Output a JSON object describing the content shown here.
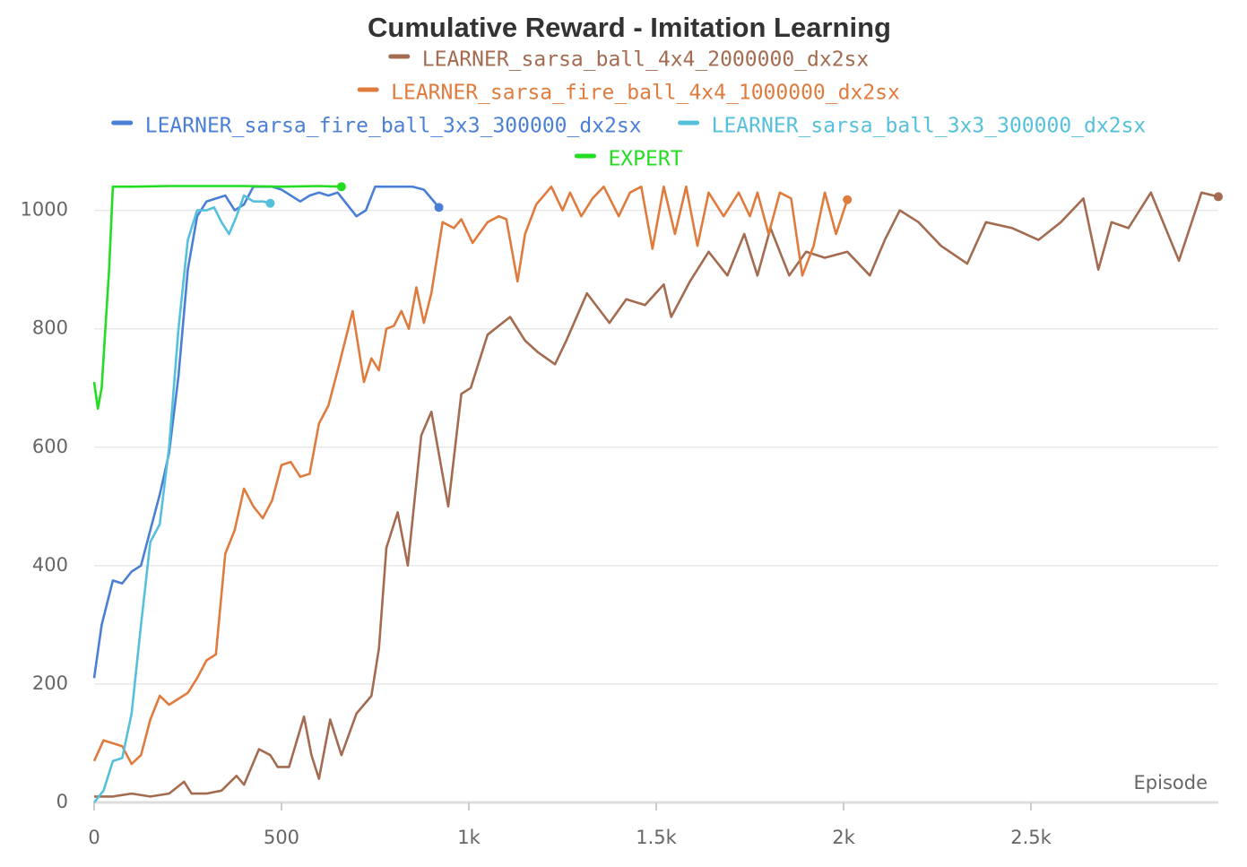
{
  "chart_data": {
    "type": "line",
    "title": "Cumulative Reward - Imitation Learning",
    "x_label": "Episode",
    "xlim": [
      0,
      3000
    ],
    "ylim": [
      0,
      1060
    ],
    "xticks": [
      0,
      500,
      {
        "value": 1000,
        "label": "1k"
      },
      {
        "value": 1500,
        "label": "1.5k"
      },
      {
        "value": 2000,
        "label": "2k"
      },
      {
        "value": 2500,
        "label": "2.5k"
      }
    ],
    "yticks": [
      0,
      200,
      400,
      600,
      800,
      1000
    ],
    "grid": true,
    "series": [
      {
        "name": "LEARNER_sarsa_ball_4x4_2000000_dx2sx",
        "color": "#a36b4f",
        "x": [
          0,
          50,
          100,
          150,
          200,
          240,
          260,
          300,
          340,
          380,
          400,
          440,
          470,
          490,
          520,
          560,
          580,
          600,
          630,
          660,
          700,
          740,
          760,
          780,
          810,
          837,
          873,
          900,
          945,
          980,
          1005,
          1050,
          1110,
          1150,
          1185,
          1230,
          1260,
          1315,
          1375,
          1420,
          1470,
          1520,
          1540,
          1590,
          1640,
          1690,
          1735,
          1770,
          1805,
          1855,
          1900,
          1950,
          2010,
          2070,
          2110,
          2150,
          2200,
          2260,
          2330,
          2380,
          2450,
          2520,
          2580,
          2640,
          2680,
          2715,
          2760,
          2820,
          2895,
          2955,
          3000
        ],
        "values": [
          10,
          10,
          15,
          10,
          15,
          35,
          15,
          15,
          20,
          45,
          30,
          90,
          80,
          60,
          60,
          145,
          80,
          40,
          140,
          80,
          150,
          180,
          260,
          430,
          490,
          400,
          620,
          660,
          500,
          690,
          700,
          790,
          820,
          780,
          760,
          740,
          780,
          860,
          810,
          850,
          840,
          875,
          820,
          880,
          930,
          890,
          960,
          890,
          970,
          890,
          930,
          920,
          930,
          890,
          950,
          1000,
          980,
          940,
          910,
          980,
          970,
          950,
          980,
          1020,
          900,
          980,
          970,
          1030,
          915,
          1030,
          1023
        ]
      },
      {
        "name": "LEARNER_sarsa_fire_ball_4x4_1000000_dx2sx",
        "color": "#e07b3e",
        "x": [
          0,
          25,
          50,
          75,
          100,
          125,
          150,
          175,
          200,
          225,
          250,
          275,
          300,
          325,
          350,
          375,
          400,
          425,
          450,
          475,
          500,
          525,
          550,
          575,
          600,
          625,
          650,
          690,
          720,
          740,
          760,
          780,
          800,
          820,
          840,
          860,
          880,
          900,
          930,
          960,
          980,
          1010,
          1050,
          1080,
          1100,
          1130,
          1150,
          1180,
          1220,
          1250,
          1270,
          1300,
          1330,
          1360,
          1400,
          1430,
          1460,
          1490,
          1520,
          1550,
          1580,
          1610,
          1640,
          1680,
          1720,
          1750,
          1770,
          1800,
          1830,
          1860,
          1890,
          1920,
          1950,
          1980,
          2010
        ],
        "values": [
          70,
          105,
          100,
          95,
          65,
          80,
          140,
          180,
          165,
          175,
          185,
          210,
          240,
          250,
          420,
          460,
          530,
          500,
          480,
          510,
          570,
          575,
          550,
          555,
          640,
          670,
          730,
          830,
          710,
          750,
          730,
          800,
          805,
          830,
          800,
          870,
          810,
          860,
          980,
          970,
          985,
          945,
          980,
          990,
          985,
          880,
          960,
          1010,
          1040,
          1000,
          1030,
          990,
          1020,
          1040,
          990,
          1030,
          1040,
          935,
          1040,
          960,
          1040,
          940,
          1030,
          990,
          1030,
          990,
          1030,
          960,
          1030,
          1020,
          890,
          940,
          1030,
          960,
          1018
        ]
      },
      {
        "name": "LEARNER_sarsa_fire_ball_3x3_300000_dx2sx",
        "color": "#4a7fd6",
        "x": [
          0,
          20,
          50,
          75,
          100,
          125,
          150,
          175,
          200,
          225,
          250,
          275,
          300,
          325,
          350,
          375,
          400,
          425,
          450,
          475,
          500,
          550,
          575,
          600,
          625,
          650,
          700,
          725,
          750,
          800,
          850,
          880,
          900,
          920
        ],
        "values": [
          210,
          300,
          375,
          370,
          390,
          400,
          460,
          520,
          590,
          720,
          900,
          990,
          1015,
          1020,
          1025,
          1000,
          1010,
          1040,
          1040,
          1040,
          1035,
          1015,
          1025,
          1030,
          1025,
          1030,
          990,
          1000,
          1040,
          1040,
          1040,
          1035,
          1020,
          1005
        ]
      },
      {
        "name": "LEARNER_sarsa_ball_3x3_300000_dx2sx",
        "color": "#55c0dc",
        "x": [
          0,
          25,
          50,
          75,
          100,
          125,
          150,
          175,
          200,
          225,
          250,
          275,
          300,
          320,
          340,
          360,
          380,
          400,
          425,
          450,
          470
        ],
        "values": [
          0,
          20,
          70,
          75,
          150,
          300,
          440,
          470,
          600,
          800,
          950,
          1000,
          1000,
          1005,
          980,
          960,
          990,
          1025,
          1015,
          1015,
          1012
        ]
      },
      {
        "name": "EXPERT",
        "color": "#22dd22",
        "x": [
          0,
          10,
          20,
          40,
          50,
          100,
          200,
          300,
          400,
          500,
          600,
          660
        ],
        "values": [
          710,
          665,
          700,
          900,
          1040,
          1040,
          1041,
          1041,
          1041,
          1040,
          1041,
          1040
        ]
      }
    ]
  }
}
